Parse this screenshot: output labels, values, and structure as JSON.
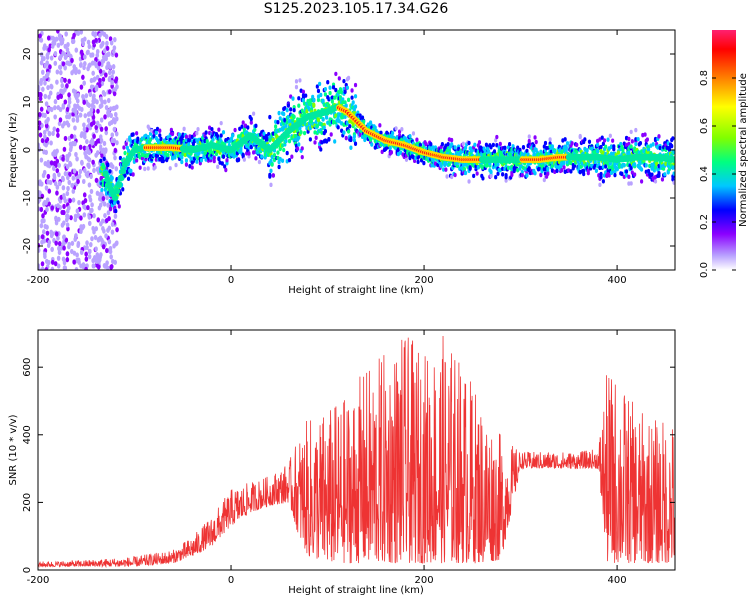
{
  "title": "S125.2023.105.17.34.G26",
  "chart_data": [
    {
      "type": "heatmap",
      "xlabel": "Height of straight line (km)",
      "ylabel": "Frequency (Hz)",
      "xlim": [
        -200,
        460
      ],
      "ylim": [
        -25,
        25
      ],
      "x_ticks": [
        -200,
        0,
        200,
        400
      ],
      "y_ticks": [
        -20,
        -10,
        0,
        10,
        20
      ],
      "colorbar": {
        "label": "Normalized spectral amplitude",
        "range": [
          0,
          1
        ],
        "ticks": [
          0.0,
          0.2,
          0.4,
          0.6,
          0.8
        ],
        "colormap": [
          "#ffffff",
          "#b9a2ff",
          "#8b00ff",
          "#0000ff",
          "#00c8ff",
          "#00ff80",
          "#80ff00",
          "#ffff00",
          "#ff8000",
          "#ff0000",
          "#ff2070"
        ]
      },
      "ridge": {
        "x": [
          -130,
          -125,
          -120,
          -110,
          -100,
          -90,
          -80,
          -60,
          -40,
          -20,
          0,
          20,
          40,
          60,
          80,
          100,
          110,
          120,
          130,
          140,
          160,
          180,
          200,
          220,
          240,
          260,
          280,
          300,
          320,
          340,
          360,
          380,
          400,
          420,
          440,
          460
        ],
        "y": [
          -5,
          -8,
          -10,
          -3,
          0,
          0.5,
          0.5,
          0.5,
          0,
          1,
          0,
          3,
          0,
          4,
          7,
          8,
          9,
          8,
          6,
          4,
          2,
          1,
          -0.5,
          -1.5,
          -2,
          -2,
          -2,
          -2,
          -2,
          -1.5,
          -1.5,
          -1.5,
          -2,
          -1.5,
          -1.5,
          -2
        ]
      }
    },
    {
      "type": "line",
      "xlabel": "Height of straight line (km)",
      "ylabel": "SNR (10 * v/v)",
      "xlim": [
        -200,
        460
      ],
      "ylim": [
        0,
        710
      ],
      "x_ticks": [
        -200,
        0,
        200,
        400
      ],
      "y_ticks": [
        0,
        200,
        400,
        600
      ],
      "series": [
        {
          "color": "#ee3333",
          "envelope": {
            "x": [
              -200,
              -150,
              -100,
              -60,
              -40,
              -20,
              0,
              20,
              40,
              60,
              70,
              80,
              100,
              120,
              140,
              160,
              180,
              200,
              220,
              240,
              260,
              280,
              300,
              320,
              340,
              360,
              380,
              390,
              400,
              420,
              440,
              460
            ],
            "low": [
              10,
              10,
              10,
              20,
              40,
              70,
              130,
              170,
              190,
              200,
              100,
              40,
              20,
              20,
              20,
              20,
              20,
              20,
              20,
              20,
              20,
              30,
              300,
              300,
              300,
              300,
              300,
              20,
              20,
              20,
              20,
              20
            ],
            "high": [
              25,
              30,
              40,
              60,
              100,
              160,
              240,
              260,
              280,
              320,
              400,
              450,
              480,
              520,
              600,
              650,
              700,
              650,
              700,
              620,
              500,
              400,
              350,
              350,
              350,
              350,
              360,
              600,
              580,
              480,
              450,
              450
            ]
          }
        }
      ]
    }
  ]
}
